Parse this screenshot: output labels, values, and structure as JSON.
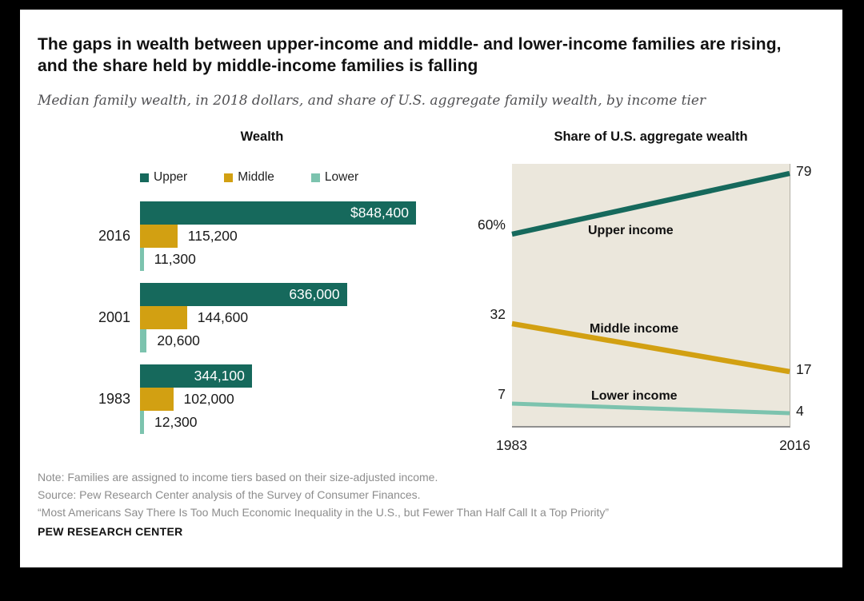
{
  "header": {
    "title": "The gaps in wealth between upper-income and middle- and lower-income families are rising, and the share held by middle-income families is falling",
    "subtitle": "Median family wealth, in 2018 dollars, and share of U.S. aggregate family wealth, by income tier"
  },
  "chart_data": [
    {
      "type": "bar",
      "orientation": "horizontal",
      "title": "Wealth",
      "categories": [
        "2016",
        "2001",
        "1983"
      ],
      "xlim": [
        0,
        848400
      ],
      "legend_position": "top",
      "series": [
        {
          "name": "Upper",
          "color": "#16695c",
          "values": [
            848400,
            636000,
            344100
          ],
          "labels": [
            "$848,400",
            "636,000",
            "344,100"
          ]
        },
        {
          "name": "Middle",
          "color": "#d2a012",
          "values": [
            115200,
            144600,
            102000
          ],
          "labels": [
            "115,200",
            "144,600",
            "102,000"
          ]
        },
        {
          "name": "Lower",
          "color": "#7cc3ae",
          "values": [
            11300,
            20600,
            12300
          ],
          "labels": [
            "11,300",
            "20,600",
            "12,300"
          ]
        }
      ]
    },
    {
      "type": "line",
      "title": "Share of U.S. aggregate wealth",
      "x": [
        1983,
        2016
      ],
      "x_labels": [
        "1983",
        "2016"
      ],
      "ylim": [
        0,
        82
      ],
      "grid": false,
      "plot_bg": "#ebe7dc",
      "series": [
        {
          "name": "Upper income",
          "color": "#16695c",
          "values": [
            60,
            79
          ],
          "start_label": "60%",
          "end_label": "79"
        },
        {
          "name": "Middle income",
          "color": "#d2a012",
          "values": [
            32,
            17
          ],
          "start_label": "32",
          "end_label": "17"
        },
        {
          "name": "Lower income",
          "color": "#7cc3ae",
          "values": [
            7,
            4
          ],
          "start_label": "7",
          "end_label": "4"
        }
      ]
    }
  ],
  "footer": {
    "note": "Note: Families are assigned to income tiers based on their size-adjusted income.",
    "source": "Source: Pew Research Center analysis of the Survey of Consumer Finances.",
    "report_title": "“Most Americans Say There Is Too Much Economic Inequality in the U.S., but Fewer Than Half Call It a Top Priority”",
    "brand": "PEW RESEARCH CENTER"
  }
}
